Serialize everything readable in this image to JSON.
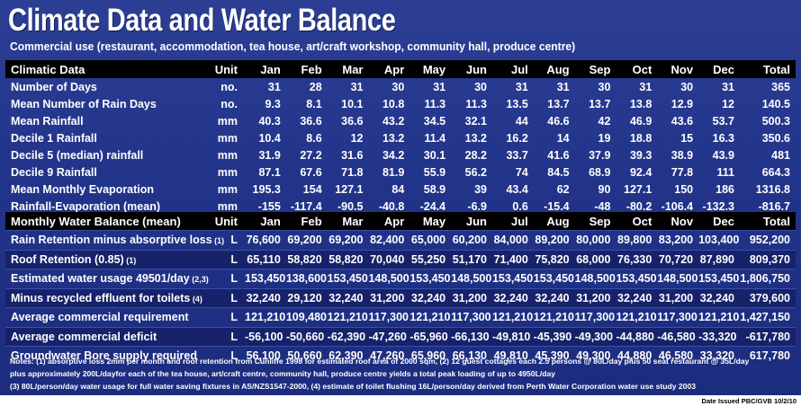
{
  "title": "Climate Data and Water Balance",
  "subtitle": "Commercial use (restaurant, accommodation, tea house, art/craft workshop, community hall, produce centre)",
  "climate": {
    "header": [
      "Climatic Data",
      "Unit",
      "Jan",
      "Feb",
      "Mar",
      "Apr",
      "May",
      "Jun",
      "Jul",
      "Aug",
      "Sep",
      "Oct",
      "Nov",
      "Dec",
      "Total"
    ],
    "rows": [
      [
        "Number of Days",
        "no.",
        "31",
        "28",
        "31",
        "30",
        "31",
        "30",
        "31",
        "31",
        "30",
        "31",
        "30",
        "31",
        "365"
      ],
      [
        "Mean Number of Rain Days",
        "no.",
        "9.3",
        "8.1",
        "10.1",
        "10.8",
        "11.3",
        "11.3",
        "13.5",
        "13.7",
        "13.7",
        "13.8",
        "12.9",
        "12",
        "140.5"
      ],
      [
        "Mean Rainfall",
        "mm",
        "40.3",
        "36.6",
        "36.6",
        "43.2",
        "34.5",
        "32.1",
        "44",
        "46.6",
        "42",
        "46.9",
        "43.6",
        "53.7",
        "500.3"
      ],
      [
        "Decile 1 Rainfall",
        "mm",
        "10.4",
        "8.6",
        "12",
        "13.2",
        "11.4",
        "13.2",
        "16.2",
        "14",
        "19",
        "18.8",
        "15",
        "16.3",
        "350.6"
      ],
      [
        "Decile 5 (median) rainfall",
        "mm",
        "31.9",
        "27.2",
        "31.6",
        "34.2",
        "30.1",
        "28.2",
        "33.7",
        "41.6",
        "37.9",
        "39.3",
        "38.9",
        "43.9",
        "481"
      ],
      [
        "Decile 9 Rainfall",
        "mm",
        "87.1",
        "67.6",
        "71.8",
        "81.9",
        "55.9",
        "56.2",
        "74",
        "84.5",
        "68.9",
        "92.4",
        "77.8",
        "111",
        "664.3"
      ],
      [
        "Mean Monthly Evaporation",
        "mm",
        "195.3",
        "154",
        "127.1",
        "84",
        "58.9",
        "39",
        "43.4",
        "62",
        "90",
        "127.1",
        "150",
        "186",
        "1316.8"
      ],
      [
        "Rainfall-Evaporation (mean)",
        "mm",
        "-155",
        "-117.4",
        "-90.5",
        "-40.8",
        "-24.4",
        "-6.9",
        "0.6",
        "-15.4",
        "-48",
        "-80.2",
        "-106.4",
        "-132.3",
        "-816.7"
      ]
    ]
  },
  "balance": {
    "header": [
      "Monthly Water Balance (mean)",
      "Unit",
      "Jan",
      "Feb",
      "Mar",
      "Apr",
      "May",
      "Jun",
      "Jul",
      "Aug",
      "Sep",
      "Oct",
      "Nov",
      "Dec",
      "Total"
    ],
    "rows": [
      [
        "Rain Retention minus absorptive loss",
        "(1)",
        "L",
        "76,600",
        "69,200",
        "69,200",
        "82,400",
        "65,000",
        "60,200",
        "84,000",
        "89,200",
        "80,000",
        "89,800",
        "83,200",
        "103,400",
        "952,200"
      ],
      [
        "Roof Retention (0.85)",
        "(1)",
        "L",
        "65,110",
        "58,820",
        "58,820",
        "70,040",
        "55,250",
        "51,170",
        "71,400",
        "75,820",
        "68,000",
        "76,330",
        "70,720",
        "87,890",
        "809,370"
      ],
      [
        "Estimated water usage 49501/day",
        "(2,3)",
        "L",
        "153,450",
        "138,600",
        "153,450",
        "148,500",
        "153,450",
        "148,500",
        "153,450",
        "153,450",
        "148,500",
        "153,450",
        "148,500",
        "153,450",
        "1,806,750"
      ],
      [
        "Minus recycled effluent for toilets",
        "(4)",
        "L",
        "32,240",
        "29,120",
        "32,240",
        "31,200",
        "32,240",
        "31,200",
        "32,240",
        "32,240",
        "31,200",
        "32,240",
        "31,200",
        "32,240",
        "379,600"
      ],
      [
        "Average commercial requirement",
        "",
        "L",
        "121,210",
        "109,480",
        "121,210",
        "117,300",
        "121,210",
        "117,300",
        "121,210",
        "121,210",
        "117,300",
        "121,210",
        "117,300",
        "121,210",
        "1,427,150"
      ],
      [
        "Average commercial deficit",
        "",
        "L",
        "-56,100",
        "-50,660",
        "-62,390",
        "-47,260",
        "-65,960",
        "-66,130",
        "-49,810",
        "-45,390",
        "-49,300",
        "-44,880",
        "-46,580",
        "-33,320",
        "-617,780"
      ],
      [
        "Groundwater Bore supply required",
        "",
        "L",
        "56,100",
        "50,660",
        "62,390",
        "47,260",
        "65,960",
        "66,130",
        "49,810",
        "45,390",
        "49,300",
        "44,880",
        "46,580",
        "33,320",
        "617,780"
      ]
    ]
  },
  "notes": [
    "Notes: (1) absorptive loss 2mm per month and roof retention from Cunliffe 1998 for estimated roof area of 2000 sqm, (2) 12 guest cottages each 2.5 persons @ 80L/day plus 50 seat restaurant @ 35L/day",
    "plus approximately 200L/dayfor each of the tea house, art/craft centre, community hall, produce centre yields a total peak loading of up to 4950L/day",
    "(3) 80L/person/day water usage for full water saving fixtures in AS/NZS1547-2000, (4) estimate of toilet flushing 16L/person/day derived from Perth Water Corporation water use study 2003"
  ],
  "date_issued": "Date Issued PBC/GVB 10/2/10"
}
